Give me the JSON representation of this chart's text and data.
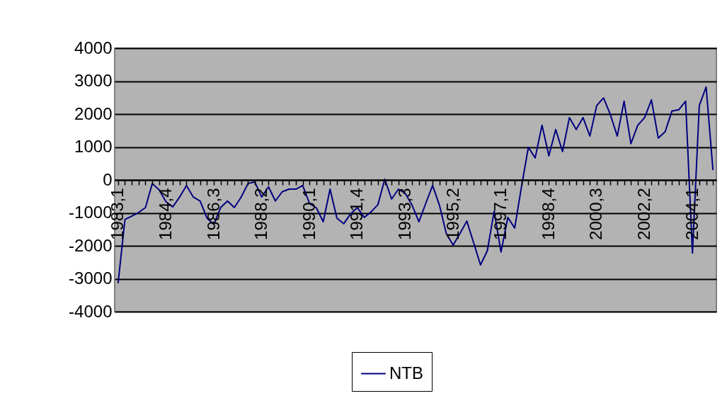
{
  "chart_data": {
    "type": "line",
    "categories": [
      "1983,1",
      null,
      null,
      null,
      null,
      null,
      null,
      "1984,4",
      null,
      null,
      null,
      null,
      null,
      null,
      "1986,3",
      null,
      null,
      null,
      null,
      null,
      null,
      "1988,2",
      null,
      null,
      null,
      null,
      null,
      null,
      "1990,1",
      null,
      null,
      null,
      null,
      null,
      null,
      "1991,4",
      null,
      null,
      null,
      null,
      null,
      null,
      "1993,3",
      null,
      null,
      null,
      null,
      null,
      null,
      "1995,2",
      null,
      null,
      null,
      null,
      null,
      null,
      "1997,1",
      null,
      null,
      null,
      null,
      null,
      null,
      "1998,4",
      null,
      null,
      null,
      null,
      null,
      null,
      "2000,3",
      null,
      null,
      null,
      null,
      null,
      null,
      "2002,2",
      null,
      null,
      null,
      null,
      null,
      null,
      "2004,1",
      null,
      null,
      null
    ],
    "series": [
      {
        "name": "NTB",
        "color": "#000080",
        "values": [
          -3140,
          -1200,
          -1100,
          -990,
          -840,
          -110,
          -300,
          -660,
          -820,
          -520,
          -170,
          -520,
          -640,
          -1160,
          -1350,
          -840,
          -640,
          -840,
          -520,
          -110,
          -60,
          -520,
          -210,
          -640,
          -360,
          -280,
          -280,
          -170,
          -720,
          -850,
          -1270,
          -280,
          -1160,
          -1330,
          -1030,
          -840,
          -1140,
          -970,
          -750,
          20,
          -580,
          -280,
          -410,
          -770,
          -1270,
          -710,
          -170,
          -770,
          -1630,
          -1980,
          -1630,
          -1250,
          -1910,
          -2580,
          -2150,
          -950,
          -2190,
          -1140,
          -1460,
          -200,
          990,
          670,
          1660,
          730,
          1530,
          860,
          1890,
          1530,
          1890,
          1330,
          2260,
          2490,
          1980,
          1330,
          2390,
          1100,
          1660,
          1890,
          2430,
          1270,
          1460,
          2090,
          2130,
          2390,
          -2220,
          2260,
          2820,
          300
        ]
      }
    ],
    "ylim": [
      -4000,
      4000
    ],
    "yticks": [
      -4000,
      -3000,
      -2000,
      -1000,
      0,
      1000,
      2000,
      3000,
      4000
    ],
    "grid": "y",
    "legend": "bottom",
    "marker": "none",
    "line_style": "solid"
  }
}
